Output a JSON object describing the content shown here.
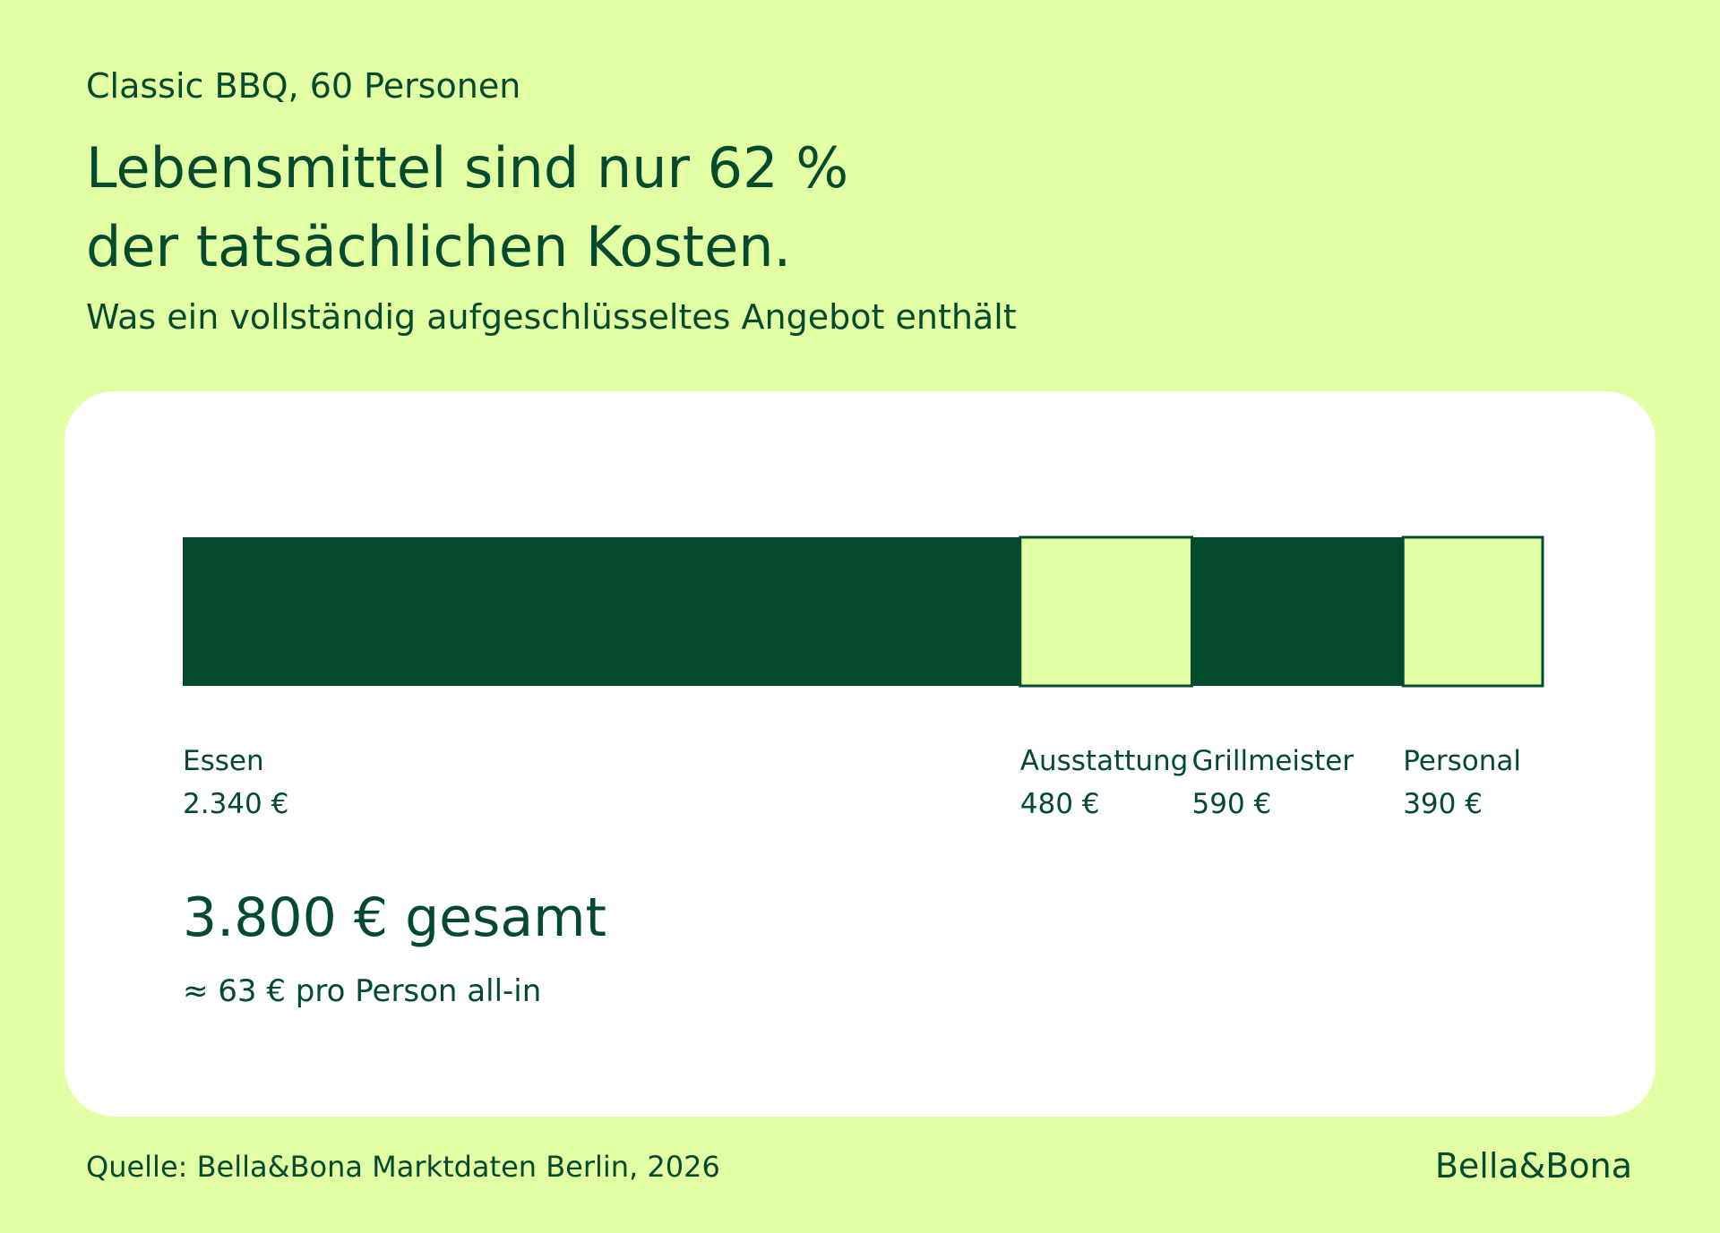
{
  "eyebrow": "Classic BBQ, 60 Personen",
  "title_lines": [
    "Lebensmittel sind nur 62 %",
    "der tatsächlichen Kosten."
  ],
  "subtitle": "Was ein vollständig aufgeschlüsseltes Angebot enthält",
  "chart_data": {
    "type": "bar",
    "orientation": "horizontal-stacked",
    "categories": [
      "Essen",
      "Ausstattung",
      "Grillmeister",
      "Personal"
    ],
    "values": [
      2340,
      480,
      590,
      390
    ],
    "value_labels": [
      "2.340 €",
      "480 €",
      "590 €",
      "390 €"
    ],
    "unit": "€",
    "fills": [
      "#044a2f",
      "#e3ffa3",
      "#044a2f",
      "#e3ffa3"
    ],
    "total_label": "3.800 € gesamt",
    "per_person_label": "≈ 63 € pro Person all-in"
  },
  "colors": {
    "background": "#e3ffa3",
    "dark_green": "#044a2f",
    "card": "#ffffff"
  },
  "footer": {
    "source": "Quelle: Bella&Bona Marktdaten Berlin, 2026",
    "brand": "Bella&Bona"
  }
}
